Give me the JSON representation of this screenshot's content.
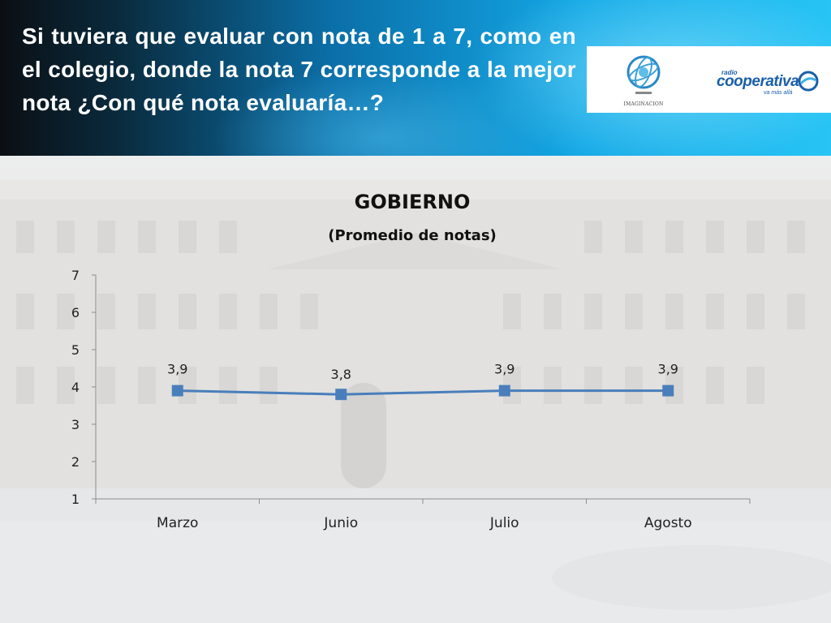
{
  "slide": {
    "question": "Si tuviera que evaluar con nota de 1 a 7, como en el colegio, donde la nota 7 corresponde a la mejor nota ¿Con qué nota evaluaría…?",
    "logos": {
      "left_text": "IMAGINACION",
      "right_small": "radio",
      "right_main": "cooperativa",
      "right_tag": "va más allá"
    }
  },
  "colors": {
    "series": "#4a7ebb",
    "header_dark": "#0b0f14",
    "header_light": "#28c4f5"
  },
  "chart_data": {
    "type": "line",
    "title": "GOBIERNO",
    "subtitle": "(Promedio de notas)",
    "categories": [
      "Marzo",
      "Junio",
      "Julio",
      "Agosto"
    ],
    "series": [
      {
        "values": [
          3.9,
          3.8,
          3.9,
          3.9
        ]
      }
    ],
    "data_labels": [
      "3,9",
      "3,8",
      "3,9",
      "3,9"
    ],
    "y_ticks": [
      "1",
      "2",
      "3",
      "4",
      "5",
      "6",
      "7"
    ],
    "ylim": [
      1,
      7
    ],
    "grid": false,
    "legend": "none",
    "marker": "square"
  }
}
